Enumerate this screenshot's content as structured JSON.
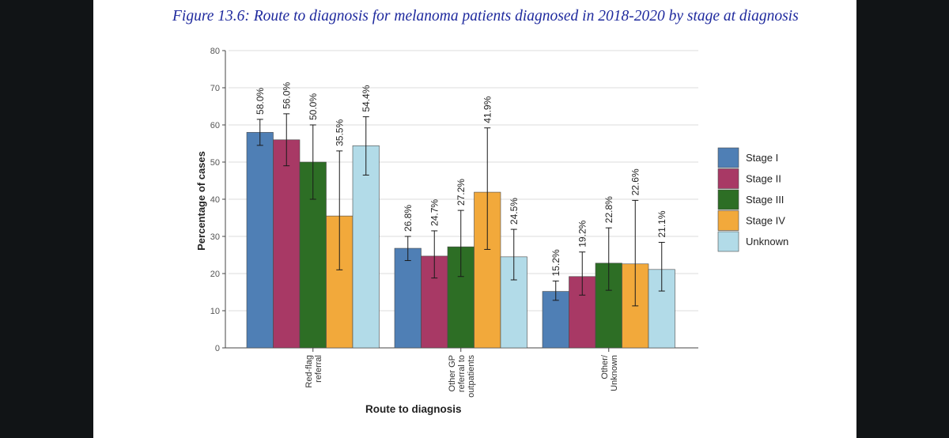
{
  "figure_title": "Figure 13.6: Route to diagnosis for melanoma patients diagnosed in 2018-2020 by stage at diagnosis",
  "colors": {
    "Stage I": "#4f7fb5",
    "Stage II": "#a83965",
    "Stage III": "#2d6e25",
    "Stage IV": "#f2a93b",
    "Unknown": "#b2dbe8"
  },
  "chart_data": {
    "type": "bar",
    "title": "Figure 13.6: Route to diagnosis for melanoma patients diagnosed in 2018-2020 by stage at diagnosis",
    "xlabel": "Route to diagnosis",
    "ylabel": "Percentage of cases",
    "ylim": [
      0,
      80
    ],
    "yticks": [
      0,
      10,
      20,
      30,
      40,
      50,
      60,
      70,
      80
    ],
    "grid": true,
    "legend_position": "right",
    "categories": [
      [
        "Red-flag",
        "referral"
      ],
      [
        "Other GP",
        "referral to",
        "outpatients"
      ],
      [
        "Other/",
        "Unknown"
      ]
    ],
    "series": [
      {
        "name": "Stage I",
        "values": [
          58.0,
          26.8,
          15.2
        ],
        "labels": [
          "58.0%",
          "26.8%",
          "15.2%"
        ],
        "ci_low": [
          54.5,
          23.5,
          12.8
        ],
        "ci_high": [
          61.5,
          30.0,
          18.0
        ]
      },
      {
        "name": "Stage II",
        "values": [
          56.0,
          24.7,
          19.2
        ],
        "labels": [
          "56.0%",
          "24.7%",
          "19.2%"
        ],
        "ci_low": [
          49.0,
          18.8,
          14.2
        ],
        "ci_high": [
          63.0,
          31.5,
          25.8
        ]
      },
      {
        "name": "Stage III",
        "values": [
          50.0,
          27.2,
          22.8
        ],
        "labels": [
          "50.0%",
          "27.2%",
          "22.8%"
        ],
        "ci_low": [
          40.0,
          19.2,
          15.5
        ],
        "ci_high": [
          60.0,
          37.0,
          32.3
        ]
      },
      {
        "name": "Stage IV",
        "values": [
          35.5,
          41.9,
          22.6
        ],
        "labels": [
          "35.5%",
          "41.9%",
          "22.6%"
        ],
        "ci_low": [
          21.0,
          26.5,
          11.3
        ],
        "ci_high": [
          53.0,
          59.2,
          39.7
        ]
      },
      {
        "name": "Unknown",
        "values": [
          54.4,
          24.5,
          21.1
        ],
        "labels": [
          "54.4%",
          "24.5%",
          "21.1%"
        ],
        "ci_low": [
          46.5,
          18.3,
          15.3
        ],
        "ci_high": [
          62.2,
          31.9,
          28.4
        ]
      }
    ]
  }
}
